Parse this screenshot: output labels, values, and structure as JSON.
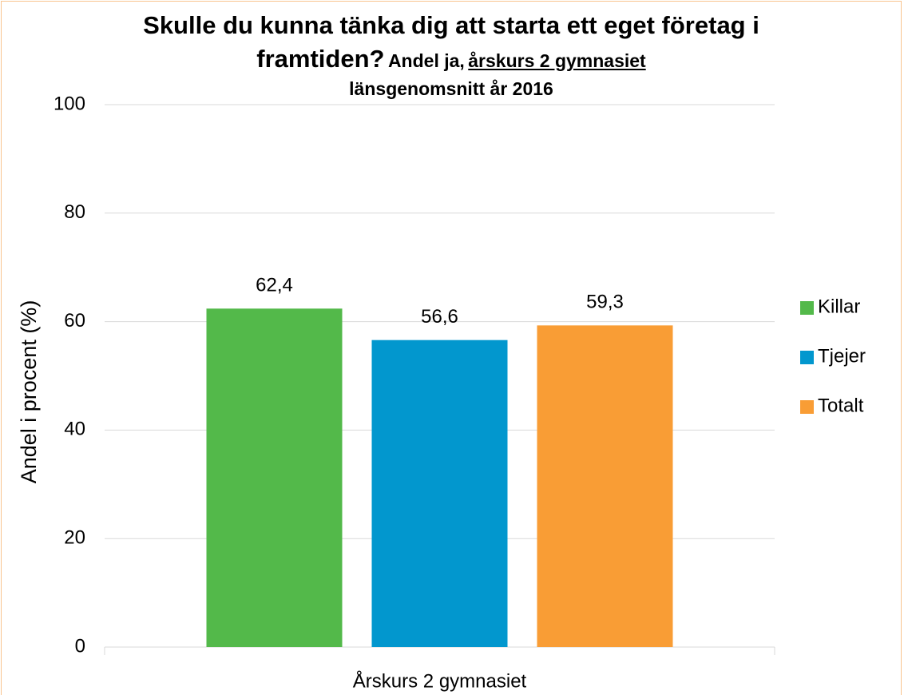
{
  "chart_data": {
    "type": "bar",
    "title": "Skulle du kunna tänka dig att starta ett eget företag i framtiden?",
    "subtitle": "Andel ja,",
    "subtitle_underlined": "årskurs 2 gymnasiet",
    "subtitle_line2": "länsgenomsnitt år 2016",
    "ylabel": "Andel i procent (%)",
    "categories": [
      "Årskurs 2 gymnasiet"
    ],
    "series": [
      {
        "name": "Killar",
        "color": "#53b94a",
        "values": [
          62.4
        ],
        "value_labels": [
          "62,4"
        ]
      },
      {
        "name": "Tjejer",
        "color": "#0297ce",
        "values": [
          56.6
        ],
        "value_labels": [
          "56,6"
        ]
      },
      {
        "name": "Totalt",
        "color": "#f99d35",
        "values": [
          59.3
        ],
        "value_labels": [
          "59,3"
        ]
      }
    ],
    "ylim": [
      0,
      100
    ],
    "yticks": [
      0,
      20,
      40,
      60,
      80,
      100
    ],
    "grid": true,
    "legend": "right"
  }
}
